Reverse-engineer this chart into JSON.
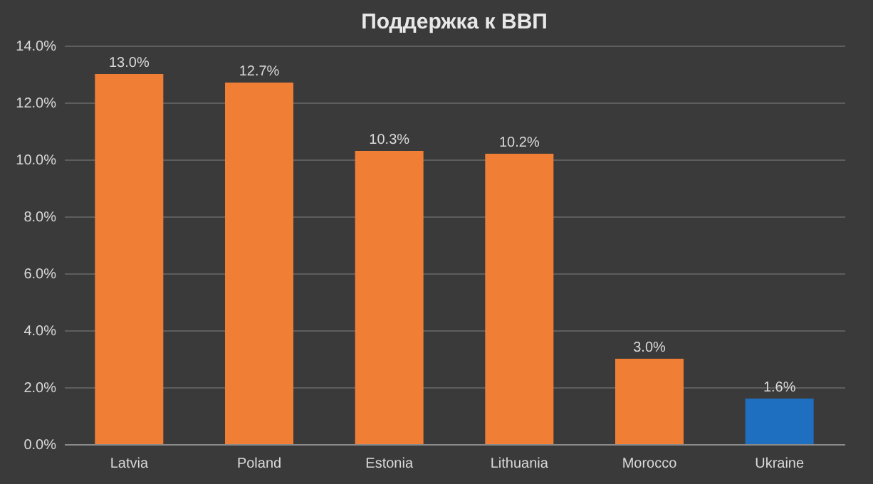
{
  "chart_data": {
    "type": "bar",
    "title": "Поддержка к ВВП",
    "categories": [
      "Latvia",
      "Poland",
      "Estonia",
      "Lithuania",
      "Morocco",
      "Ukraine"
    ],
    "values": [
      13.0,
      12.7,
      10.3,
      10.2,
      3.0,
      1.6
    ],
    "colors": [
      "#f07f35",
      "#f07f35",
      "#f07f35",
      "#f07f35",
      "#f07f35",
      "#1f6fc1"
    ],
    "value_labels": [
      "13.0%",
      "12.7%",
      "10.3%",
      "10.2%",
      "3.0%",
      "1.6%"
    ],
    "ylim": [
      0,
      14
    ],
    "yticks": [
      {
        "value": 0,
        "label": "0.0%"
      },
      {
        "value": 2,
        "label": "2.0%"
      },
      {
        "value": 4,
        "label": "4.0%"
      },
      {
        "value": 6,
        "label": "6.0%"
      },
      {
        "value": 8,
        "label": "8.0%"
      },
      {
        "value": 10,
        "label": "10.0%"
      },
      {
        "value": 12,
        "label": "12.0%"
      },
      {
        "value": 14,
        "label": "14.0%"
      }
    ],
    "grid": "y"
  }
}
